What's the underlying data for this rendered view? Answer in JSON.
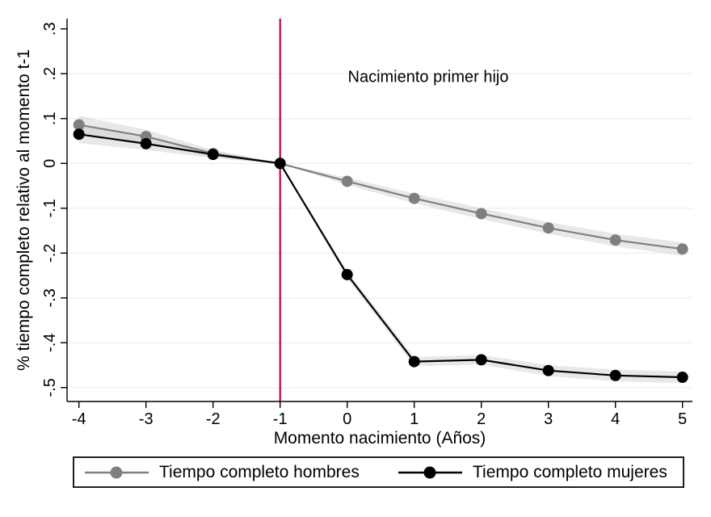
{
  "chart_data": {
    "type": "line",
    "title": "",
    "xlabel": "Momento nacimiento (Años)",
    "ylabel": "% tiempo completo relativo al momento t-1",
    "annotation": {
      "text": "Nacimiento primer hijo"
    },
    "vline": {
      "x": -1,
      "color": "#c10534"
    },
    "x": [
      -4,
      -3,
      -2,
      -1,
      0,
      1,
      2,
      3,
      4,
      5
    ],
    "xtick_labels": [
      "-4",
      "-3",
      "-2",
      "-1",
      "0",
      "1",
      "2",
      "3",
      "4",
      "5"
    ],
    "yticks": [
      {
        "label": ".3",
        "value": 0.3
      },
      {
        "label": ".2",
        "value": 0.2
      },
      {
        "label": ".1",
        "value": 0.1
      },
      {
        "label": "0",
        "value": 0.0
      },
      {
        "label": "-.1",
        "value": -0.1
      },
      {
        "label": "-.2",
        "value": -0.2
      },
      {
        "label": "-.3",
        "value": -0.3
      },
      {
        "label": "-.4",
        "value": -0.4
      },
      {
        "label": "-.5",
        "value": -0.5
      }
    ],
    "grid_values": [
      0.2,
      0.1,
      0.0,
      -0.1,
      -0.2,
      -0.3,
      -0.4,
      -0.5
    ],
    "xlim": [
      -4.177,
      5.148
    ],
    "ylim": [
      -0.531,
      0.323
    ],
    "grid_on": true,
    "grid_color": "#eaf2f3",
    "ci_color": "#c9c9c9",
    "ci_opacity": 0.42,
    "axis_color": "#000000",
    "legend_position": "bottom",
    "series": [
      {
        "name": "Tiempo completo hombres",
        "color": "#808080",
        "values": [
          0.086,
          0.06,
          0.022,
          0.0,
          -0.04,
          -0.078,
          -0.112,
          -0.144,
          -0.171,
          -0.191
        ],
        "ci_halfwidth": [
          0.02,
          0.015,
          0.008,
          0.001,
          0.008,
          0.011,
          0.012,
          0.013,
          0.014,
          0.015
        ]
      },
      {
        "name": "Tiempo completo mujeres",
        "color": "#000000",
        "values": [
          0.065,
          0.044,
          0.02,
          0.0,
          -0.248,
          -0.442,
          -0.438,
          -0.462,
          -0.473,
          -0.477
        ],
        "ci_halfwidth": [
          0.02,
          0.014,
          0.008,
          0.001,
          0.008,
          0.01,
          0.011,
          0.012,
          0.013,
          0.013
        ]
      }
    ]
  }
}
